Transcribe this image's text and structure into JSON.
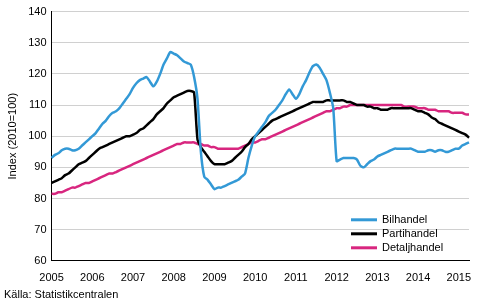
{
  "chart_data": {
    "type": "line",
    "ylabel": "Index (2010=100)",
    "source": "Källa: Statistikcentralen",
    "categories": [
      "2005",
      null,
      null,
      null,
      null,
      null,
      null,
      null,
      null,
      null,
      null,
      null,
      "2006",
      null,
      null,
      null,
      null,
      null,
      null,
      null,
      null,
      null,
      null,
      null,
      "2007",
      null,
      null,
      null,
      null,
      null,
      null,
      null,
      null,
      null,
      null,
      null,
      "2008",
      null,
      null,
      null,
      null,
      null,
      null,
      null,
      null,
      null,
      null,
      null,
      "2009",
      null,
      null,
      null,
      null,
      null,
      null,
      null,
      null,
      null,
      null,
      null,
      "2010",
      null,
      null,
      null,
      null,
      null,
      null,
      null,
      null,
      null,
      null,
      null,
      "2011",
      null,
      null,
      null,
      null,
      null,
      null,
      null,
      null,
      null,
      null,
      null,
      "2012",
      null,
      null,
      null,
      null,
      null,
      null,
      null,
      null,
      null,
      null,
      null,
      "2013",
      null,
      null,
      null,
      null,
      null,
      null,
      null,
      null,
      null,
      null,
      null,
      "2014",
      null,
      null,
      null,
      null,
      null,
      null,
      null,
      null,
      null,
      null,
      null,
      "2015",
      null,
      null,
      null
    ],
    "series": [
      {
        "name": "Bilhandel",
        "color": "#3399d6",
        "values": [
          93,
          94,
          94.5,
          95.5,
          96,
          96,
          95.5,
          95.5,
          96,
          97,
          98,
          99,
          100,
          101,
          102.5,
          104,
          105,
          106.5,
          107.5,
          108,
          109,
          110.5,
          112,
          113.5,
          115.5,
          117,
          118,
          118.5,
          119,
          117.5,
          116,
          117.5,
          120,
          123,
          125,
          127,
          126.5,
          126,
          125,
          124,
          123.5,
          123,
          119,
          112,
          95,
          87,
          86,
          84.5,
          83,
          83.5,
          83.5,
          84,
          84.5,
          85,
          85.5,
          86,
          87,
          88,
          93,
          97,
          100,
          101.5,
          103,
          104.5,
          106.5,
          107.5,
          108.5,
          110,
          111.5,
          113.5,
          115,
          113.5,
          112,
          113.5,
          116,
          118,
          120.5,
          122.5,
          123,
          122,
          120,
          118,
          114,
          109,
          92,
          92.5,
          93,
          93,
          93,
          93,
          92.5,
          90.5,
          90,
          91,
          92,
          92.5,
          93.5,
          94,
          94.5,
          95,
          95.5,
          96,
          96,
          96,
          96,
          96,
          96,
          95.5,
          95,
          95,
          95,
          95.5,
          95.5,
          95,
          95.5,
          95.5,
          95,
          95,
          95.5,
          96,
          96,
          97,
          97.5,
          98
        ]
      },
      {
        "name": "Partihandel",
        "color": "#000000",
        "values": [
          85,
          85.5,
          86,
          86.5,
          87.5,
          88,
          89,
          90,
          91,
          91.5,
          92,
          93,
          94,
          95,
          96,
          96.5,
          97,
          97.5,
          98,
          98.5,
          99,
          99.5,
          100,
          100,
          100.5,
          101,
          102,
          102.5,
          103.5,
          104.5,
          105.5,
          107,
          108,
          109,
          110.5,
          111.5,
          112.5,
          113,
          113.5,
          114,
          114.5,
          114.5,
          114,
          99,
          96.5,
          95,
          93.5,
          92,
          91,
          91,
          91,
          91,
          91.5,
          92,
          93,
          94,
          95,
          96.5,
          97.5,
          99,
          100,
          101,
          102,
          103,
          104,
          105,
          105.5,
          106,
          106.5,
          107,
          107.5,
          108,
          108.5,
          109,
          109.5,
          110,
          110.5,
          111,
          111,
          111,
          111,
          111.5,
          111.5,
          111.5,
          111.5,
          111.5,
          111.5,
          111,
          111,
          110.5,
          110,
          110,
          110,
          109.5,
          109.5,
          109,
          109,
          108.5,
          108.5,
          108.5,
          109,
          109,
          109,
          109,
          109,
          109,
          109,
          108.5,
          108,
          108,
          107.5,
          107,
          106,
          105.5,
          104.5,
          104,
          103.5,
          103,
          102.5,
          102,
          101.5,
          101,
          100.5,
          99.5
        ]
      },
      {
        "name": "Detaljhandel",
        "color": "#d8267f",
        "values": [
          81.5,
          81.5,
          82,
          82,
          82.5,
          83,
          83.5,
          83.5,
          84,
          84.5,
          85,
          85,
          85.5,
          86,
          86.5,
          87,
          87.5,
          88,
          88,
          88.5,
          89,
          89.5,
          90,
          90.5,
          91,
          91.5,
          92,
          92.5,
          93,
          93.5,
          94,
          94.5,
          95,
          95.5,
          96,
          96.5,
          97,
          97.5,
          97.5,
          98,
          98,
          98,
          98,
          97.5,
          97.5,
          97,
          97,
          96.5,
          96.5,
          96,
          96,
          96,
          96,
          96,
          96,
          96,
          96.5,
          97,
          97.5,
          98,
          98,
          98.5,
          99,
          99,
          99.5,
          100,
          100.5,
          101,
          101.5,
          102,
          102.5,
          103,
          103.5,
          104,
          104.5,
          105,
          105.5,
          106,
          106.5,
          107,
          107.5,
          108,
          108,
          108.5,
          109,
          109,
          109.5,
          109.5,
          110,
          110,
          110,
          110,
          110,
          110,
          110,
          110,
          110,
          110,
          110,
          110,
          110,
          110,
          110,
          110,
          109.5,
          109.5,
          109.5,
          109.5,
          109,
          109,
          109,
          108.5,
          108.5,
          108.5,
          108,
          108,
          108,
          108,
          107.5,
          107.5,
          107.5,
          107.5,
          107,
          107
        ]
      }
    ],
    "ylim": [
      60,
      140
    ],
    "yticks": [
      60,
      70,
      80,
      90,
      100,
      110,
      120,
      130,
      140
    ],
    "grid": true,
    "legend": "lower right"
  }
}
